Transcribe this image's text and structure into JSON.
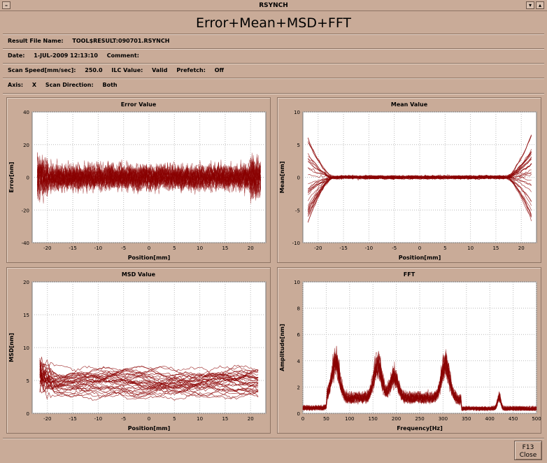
{
  "window": {
    "title": "RSYNCH"
  },
  "header": {
    "title": "Error+Mean+MSD+FFT"
  },
  "info": {
    "result_label": "Result File Name:",
    "result_value": "TOOL$RESULT:090701.RSYNCH",
    "date_label": "Date:",
    "date_value": "1-JUL-2009 12:13:10",
    "comment_label": "Comment:",
    "speed_label": "Scan Speed[mm/sec]:",
    "speed_value": "250.0",
    "ilc_label": "ILC Value:",
    "ilc_value": "Valid",
    "prefetch_label": "Prefetch:",
    "prefetch_value": "Off",
    "axis_label": "Axis:",
    "axis_value": "X",
    "direction_label": "Scan Direction:",
    "direction_value": "Both"
  },
  "colors": {
    "trace": "#8b0000",
    "plot_bg": "#ffffff",
    "window_bg": "#c9ab98"
  },
  "buttons": {
    "close_key": "F13",
    "close_label": "Close"
  },
  "chart_data": [
    {
      "id": "error",
      "type": "line",
      "title": "Error Value",
      "xlabel": "Position[mm]",
      "ylabel": "Error[nm]",
      "xlim": [
        -23,
        23
      ],
      "ylim": [
        -40,
        40
      ],
      "xticks": [
        -20,
        -15,
        -10,
        -5,
        0,
        5,
        10,
        15,
        20
      ],
      "yticks": [
        -40,
        -20,
        0,
        20,
        40
      ],
      "grid": true
    },
    {
      "id": "mean",
      "type": "line",
      "title": "Mean Value",
      "xlabel": "Position[mm]",
      "ylabel": "Mean[nm]",
      "xlim": [
        -23,
        23
      ],
      "ylim": [
        -10,
        10
      ],
      "xticks": [
        -20,
        -15,
        -10,
        -5,
        0,
        5,
        10,
        15,
        20
      ],
      "yticks": [
        -10,
        -5,
        0,
        5,
        10
      ],
      "grid": true
    },
    {
      "id": "msd",
      "type": "line",
      "title": "MSD Value",
      "xlabel": "Position[mm]",
      "ylabel": "MSD[nm]",
      "xlim": [
        -23,
        23
      ],
      "ylim": [
        0,
        20
      ],
      "xticks": [
        -20,
        -15,
        -10,
        -5,
        0,
        5,
        10,
        15,
        20
      ],
      "yticks": [
        0,
        5,
        10,
        15,
        20
      ],
      "grid": true
    },
    {
      "id": "fft",
      "type": "line",
      "title": "FFT",
      "xlabel": "Frequency[Hz]",
      "ylabel": "Amplitude[nm]",
      "xlim": [
        0,
        500
      ],
      "ylim": [
        0,
        10
      ],
      "xticks": [
        0,
        50,
        100,
        150,
        200,
        250,
        300,
        350,
        400,
        450,
        500
      ],
      "yticks": [
        0,
        2,
        4,
        6,
        8,
        10
      ],
      "grid": true,
      "peaks": [
        {
          "x": 70,
          "y": 3.5
        },
        {
          "x": 160,
          "y": 3.4
        },
        {
          "x": 195,
          "y": 2.2
        },
        {
          "x": 305,
          "y": 3.5
        },
        {
          "x": 420,
          "y": 1.3
        }
      ]
    }
  ]
}
